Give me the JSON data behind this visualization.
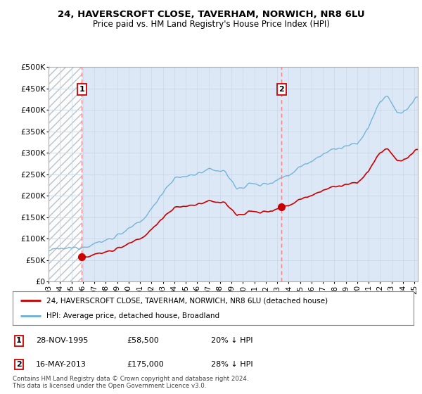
{
  "title1": "24, HAVERSCROFT CLOSE, TAVERHAM, NORWICH, NR8 6LU",
  "title2": "Price paid vs. HM Land Registry's House Price Index (HPI)",
  "legend_line1": "24, HAVERSCROFT CLOSE, TAVERHAM, NORWICH, NR8 6LU (detached house)",
  "legend_line2": "HPI: Average price, detached house, Broadland",
  "footnote": "Contains HM Land Registry data © Crown copyright and database right 2024.\nThis data is licensed under the Open Government Licence v3.0.",
  "sale1_date": 1995.91,
  "sale1_price": 58500,
  "sale1_label": "1",
  "sale1_text": "28-NOV-1995",
  "sale1_amount": "£58,500",
  "sale1_hpi": "20% ↓ HPI",
  "sale2_date": 2013.38,
  "sale2_price": 175000,
  "sale2_label": "2",
  "sale2_text": "16-MAY-2013",
  "sale2_amount": "£175,000",
  "sale2_hpi": "28% ↓ HPI",
  "xmin": 1993.0,
  "xmax": 2025.3,
  "ymin": 0,
  "ymax": 500000,
  "yticks": [
    0,
    50000,
    100000,
    150000,
    200000,
    250000,
    300000,
    350000,
    400000,
    450000,
    500000
  ],
  "hpi_color": "#6aaed6",
  "price_color": "#cc0000",
  "vline_color": "#ff8080",
  "hatch_color": "#bbbbbb",
  "grid_color": "#c8d8e8",
  "box_color": "#cc0000",
  "bg_color": "#ffffff",
  "plot_bg": "#dce8f5"
}
